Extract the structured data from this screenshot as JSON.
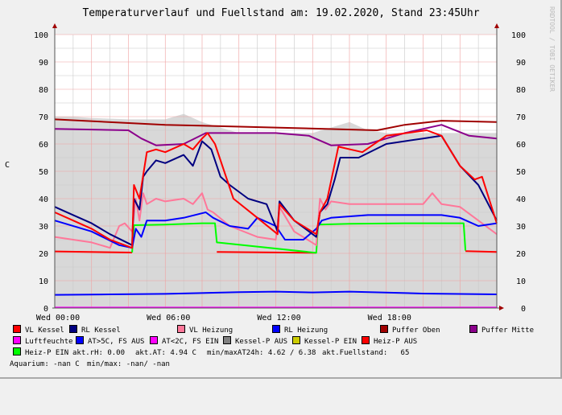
{
  "chart_data": {
    "type": "line",
    "title": "Temperaturverlauf und Fuellstand am: 19.02.2020, Stand 23:45Uhr",
    "ylabel": "C",
    "ylim": [
      0,
      100
    ],
    "xlim_hours": [
      0,
      24
    ],
    "yticks": [
      0,
      10,
      20,
      30,
      40,
      50,
      60,
      70,
      80,
      90,
      100
    ],
    "xticks": [
      {
        "h": 0,
        "label": "Wed 00:00"
      },
      {
        "h": 6,
        "label": "Wed 06:00"
      },
      {
        "h": 12,
        "label": "Wed 12:00"
      },
      {
        "h": 18,
        "label": "Wed 18:00"
      }
    ],
    "grid": true,
    "watermark": "RRDTOOL / TOBI OETIKER",
    "area": {
      "name": "Kessel-P AUS",
      "color": "#d8d8d8",
      "x": [
        0,
        1,
        2,
        4,
        6,
        7,
        8,
        10,
        12,
        14,
        15,
        16,
        17,
        18,
        20,
        22,
        24
      ],
      "y": [
        70,
        70,
        69.5,
        69,
        69,
        71,
        68,
        64,
        64,
        64,
        66,
        68,
        65,
        64,
        64,
        64,
        64
      ]
    },
    "series": [
      {
        "name": "Puffer Oben",
        "color": "#a00000",
        "x": [
          0,
          6,
          12,
          17.5,
          19,
          21,
          24
        ],
        "y": [
          69,
          67,
          66,
          65,
          67,
          68.5,
          68
        ]
      },
      {
        "name": "Puffer Mitte",
        "color": "#8b008b",
        "x": [
          0,
          4,
          4.7,
          5.5,
          7,
          8.2,
          12,
          13.8,
          15,
          17,
          19,
          21,
          22.5,
          24
        ],
        "y": [
          65.5,
          65,
          62,
          59.5,
          60,
          64,
          64,
          63,
          59.5,
          60,
          64,
          67,
          63,
          62
        ]
      },
      {
        "name": "Heiz-P AUS",
        "color": "#ff0000",
        "x": [
          0,
          4.2,
          4.3,
          8.7,
          8.8,
          14.2,
          14.3,
          22.2,
          22.3,
          24
        ],
        "y": [
          20.7,
          20.3,
          null,
          null,
          20.5,
          20.2,
          null,
          null,
          20.8,
          20.5
        ]
      },
      {
        "name": "Heiz-P EIN",
        "color": "#00ff00",
        "x": [
          4.2,
          4.3,
          6,
          8,
          8.7,
          8.8,
          14.2,
          14.3,
          16,
          19,
          20,
          22.2,
          22.3
        ],
        "y": [
          20.3,
          30.3,
          30.5,
          31,
          31,
          24,
          20.2,
          30.5,
          30.8,
          31,
          31,
          31,
          21
        ]
      },
      {
        "name": "VL Heizung",
        "color": "#ff7799",
        "x": [
          0,
          2,
          3,
          3.5,
          3.8,
          4.2,
          4.4,
          4.6,
          4.8,
          5,
          5.5,
          6,
          7,
          7.5,
          8,
          8.3,
          8.6,
          9.5,
          11,
          12,
          12.2,
          13,
          14.2,
          14.4,
          14.7,
          15,
          16,
          18,
          20,
          20.5,
          21,
          22,
          23,
          24
        ],
        "y": [
          26,
          24,
          22,
          30,
          31,
          28,
          40,
          32,
          42,
          38,
          40,
          39,
          40,
          38,
          42,
          36,
          35,
          30,
          26,
          25,
          37,
          28,
          23,
          40,
          36,
          39,
          38,
          38,
          38,
          42,
          38,
          37,
          32,
          27
        ]
      },
      {
        "name": "RL Heizung",
        "color": "#0000ff",
        "x": [
          0,
          2,
          3.5,
          4.2,
          4.4,
          4.7,
          5,
          6,
          7,
          8.2,
          8.6,
          9.5,
          10.5,
          11,
          12,
          12.5,
          13.5,
          14.2,
          14.5,
          15,
          17,
          19,
          21,
          22,
          23,
          24
        ],
        "y": [
          32,
          28,
          23,
          22,
          29,
          26,
          32,
          32,
          33,
          35,
          33,
          30,
          29,
          33,
          30,
          25,
          25,
          29,
          32,
          33,
          34,
          34,
          34,
          33,
          30,
          31
        ]
      },
      {
        "name": "RL Kessel",
        "color": "#000080",
        "x": [
          0,
          1,
          2,
          3,
          4.2,
          4.3,
          4.6,
          4.8,
          5,
          5.5,
          6,
          7,
          7.5,
          8,
          8.5,
          9,
          9.5,
          10.5,
          11.5,
          12.1,
          12.2,
          13,
          14.2,
          14.4,
          14.8,
          15.2,
          15.5,
          16.5,
          18,
          20,
          21,
          22,
          23,
          24
        ],
        "y": [
          37,
          34,
          31,
          27,
          23,
          40,
          36,
          48,
          50,
          54,
          53,
          56,
          52,
          61,
          58,
          48,
          45,
          40,
          38,
          28,
          39,
          32,
          26,
          35,
          38,
          47,
          55,
          55,
          60,
          62,
          63,
          52,
          45,
          32
        ]
      },
      {
        "name": "VL Kessel",
        "color": "#ff0000",
        "x": [
          0,
          1,
          2,
          3,
          4.2,
          4.3,
          4.6,
          5,
          5.5,
          6,
          7,
          7.5,
          8,
          8.3,
          8.7,
          9.7,
          11,
          12.1,
          12.2,
          13,
          14.2,
          14.4,
          14.8,
          15.4,
          16.7,
          18,
          20.2,
          21,
          22,
          22.8,
          23.2,
          24
        ],
        "y": [
          35,
          32,
          29,
          25,
          22,
          45,
          40,
          57,
          58,
          57,
          60,
          58,
          62,
          64,
          60,
          40,
          33,
          27,
          38,
          32,
          27,
          35,
          40,
          59,
          57,
          63,
          65,
          63,
          52,
          47,
          48,
          31
        ]
      },
      {
        "name": "AT>5C, FS AUS",
        "color": "#0000ff",
        "x": [
          0,
          3,
          6,
          10,
          12,
          14,
          16,
          20,
          24
        ],
        "y": [
          4.8,
          5,
          5.2,
          5.8,
          6,
          5.7,
          6,
          5.3,
          5
        ]
      },
      {
        "name": "Luftfeuchte",
        "color": "#ff00ff",
        "x": [
          0,
          24
        ],
        "y": [
          0.2,
          0.2
        ]
      }
    ]
  },
  "legend": [
    {
      "label": "VL Kessel",
      "color": "#ff0000"
    },
    {
      "label": "RL Kessel",
      "color": "#000080"
    },
    {
      "label": "VL Heizung",
      "color": "#ff7799"
    },
    {
      "label": "RL Heizung",
      "color": "#0000ff"
    },
    {
      "label": "Puffer Oben",
      "color": "#a00000"
    },
    {
      "label": "Puffer Mitte",
      "color": "#8b008b"
    },
    {
      "label": "Luftfeuchte",
      "color": "#ff00ff"
    },
    {
      "label": "AT>5C, FS AUS",
      "color": "#0000ff"
    },
    {
      "label": "AT<2C, FS EIN",
      "color": "#ff00ff"
    },
    {
      "label": "Kessel-P AUS",
      "color": "#808080"
    },
    {
      "label": "Kessel-P EIN",
      "color": "#cccc00"
    },
    {
      "label": "Heiz-P AUS",
      "color": "#ff0000"
    },
    {
      "label": "Heiz-P EIN",
      "color": "#00ff00"
    }
  ],
  "stats": {
    "rh": "akt.rH: 0.00",
    "at": "akt.AT: 4.94 C",
    "minmax": "min/maxAT24h: 4.62 / 6.38",
    "fuell": "akt.Fuellstand:   65",
    "aquarium": "Aquarium: -nan C",
    "aq_minmax": "min/max: -nan/ -nan"
  }
}
